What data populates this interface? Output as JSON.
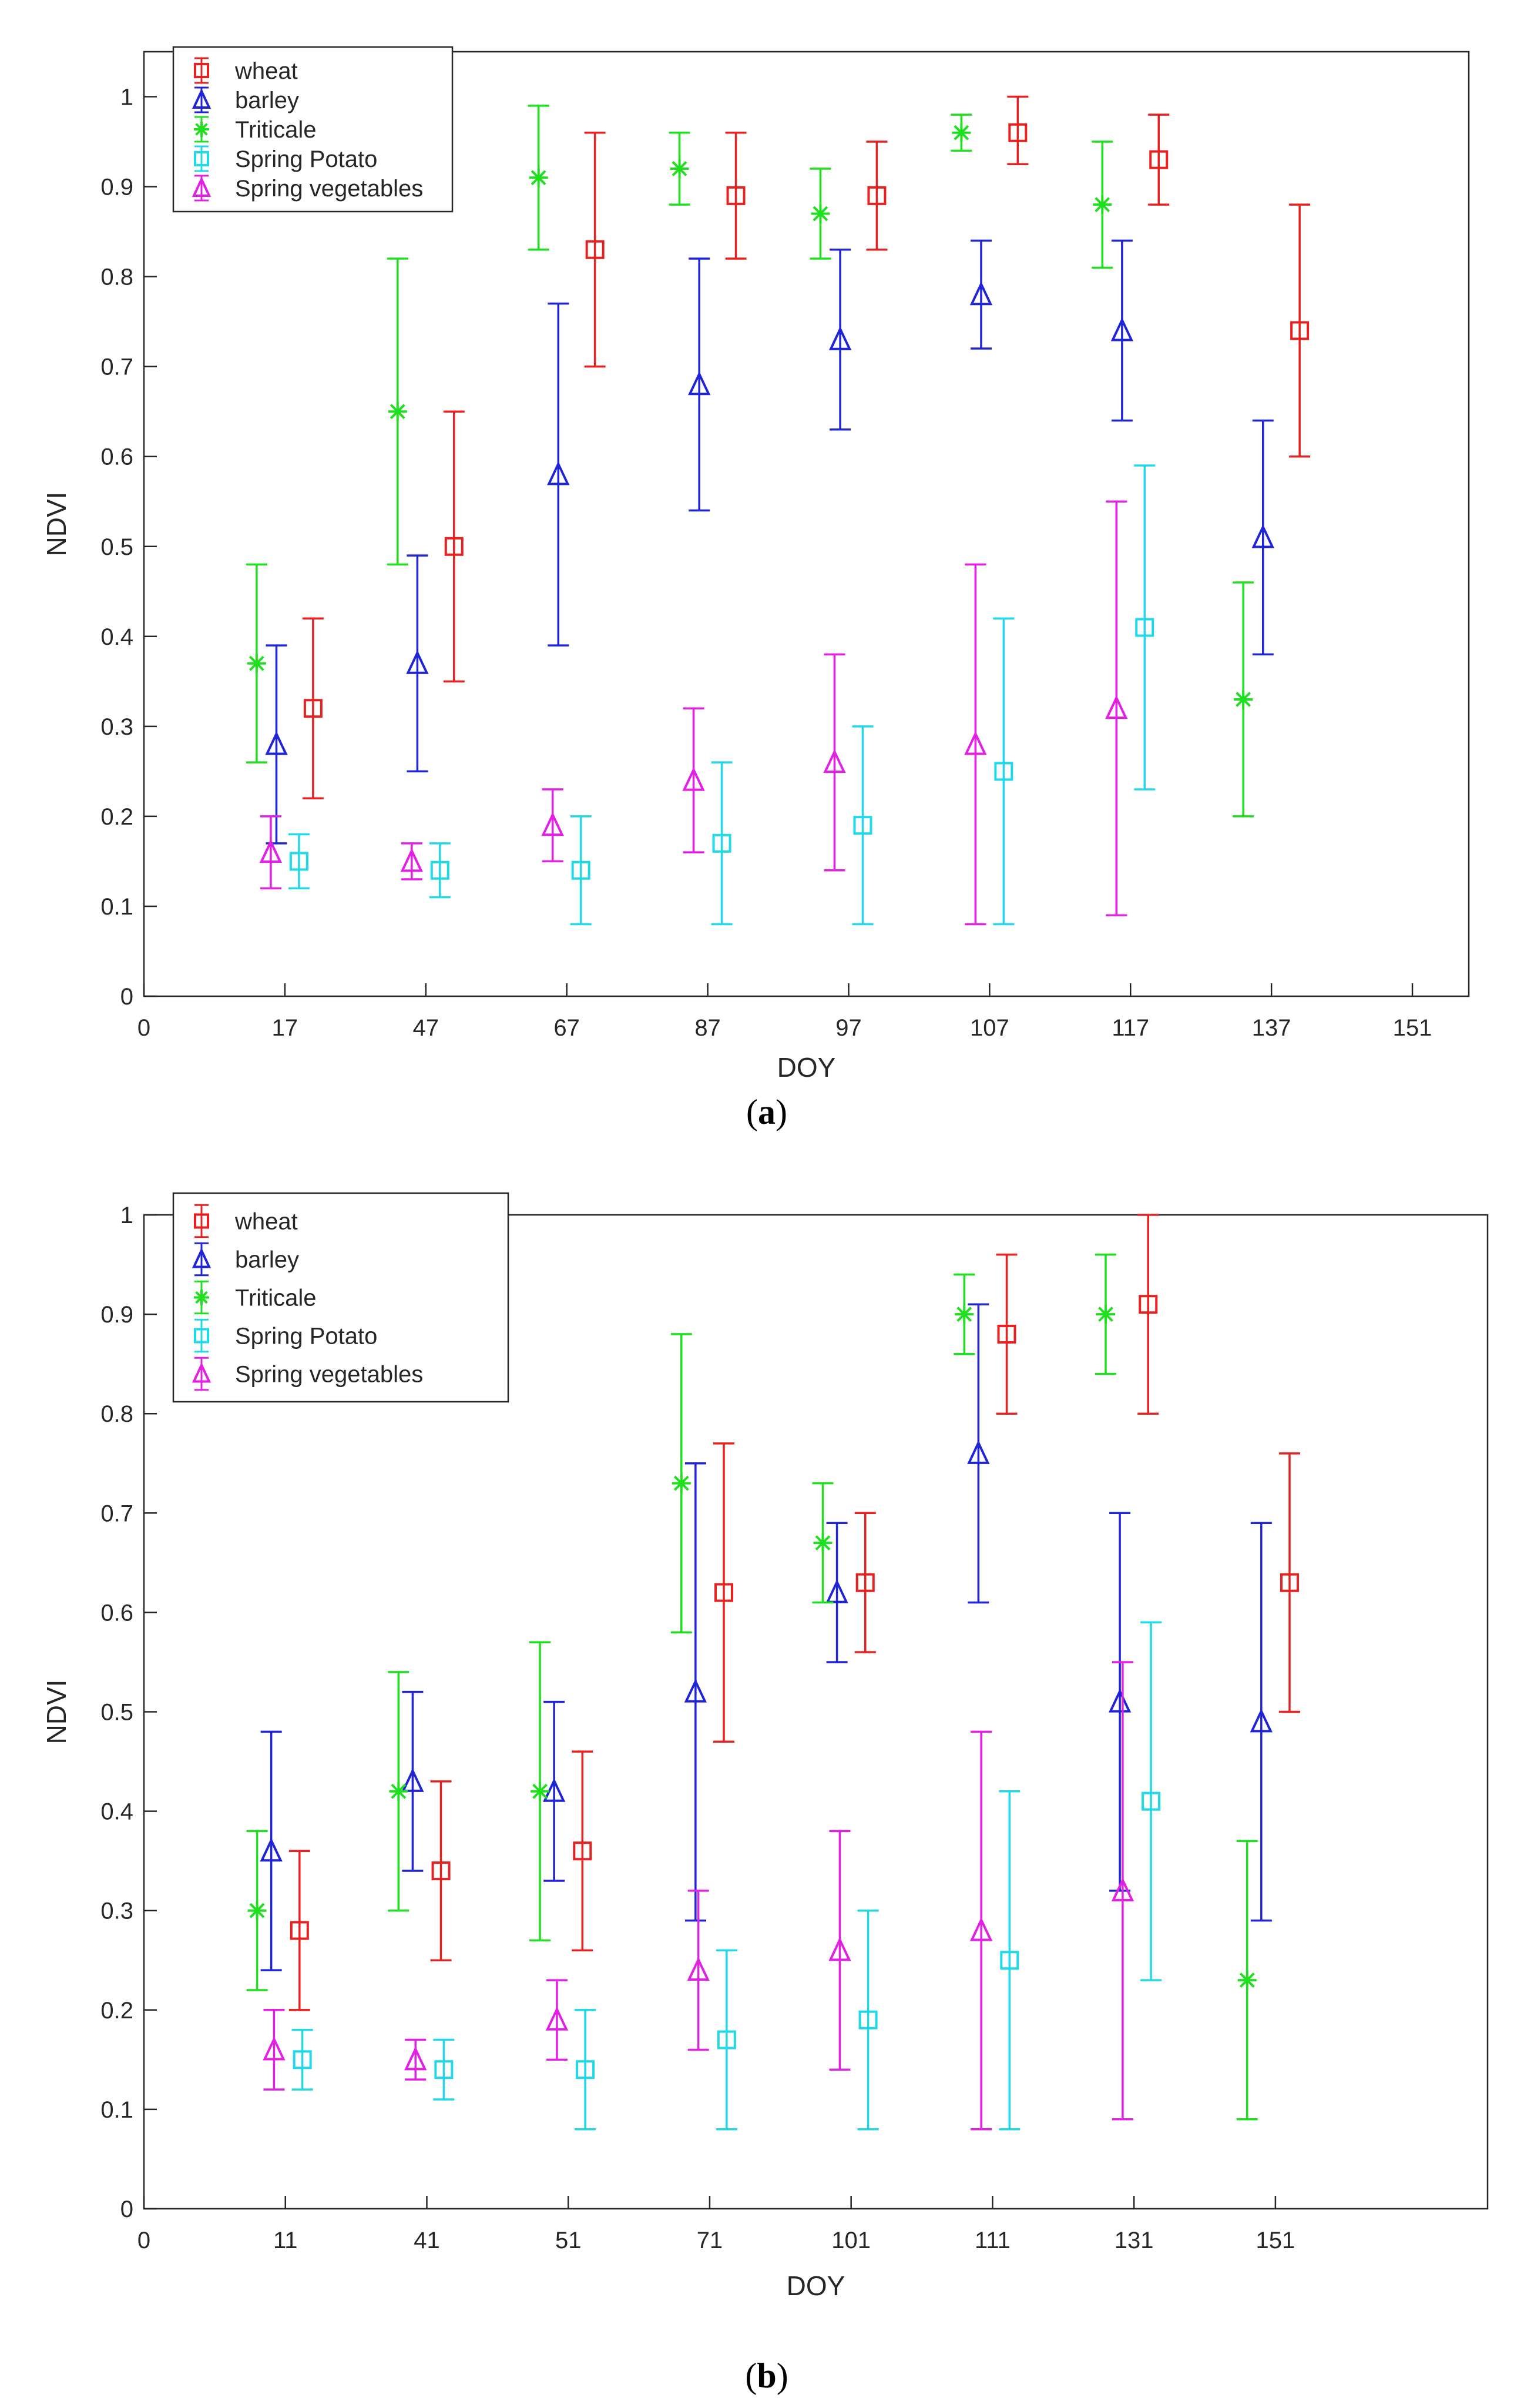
{
  "chart_data": [
    {
      "type": "errorbar",
      "panel_label": "(a)",
      "panel_letter": "a",
      "xlabel": "DOY",
      "ylabel": "NDVI",
      "xlim": [
        0,
        9.4
      ],
      "ylim": [
        0,
        1.05
      ],
      "x_tick_labels": [
        "0",
        "17",
        "47",
        "67",
        "87",
        "97",
        "107",
        "117",
        "137",
        "151"
      ],
      "y_ticks": [
        0,
        0.1,
        0.2,
        0.3,
        0.4,
        0.5,
        0.6,
        0.7,
        0.8,
        0.9,
        1
      ],
      "y_tick_labels": [
        "0",
        "0.1",
        "0.2",
        "0.3",
        "0.4",
        "0.5",
        "0.6",
        "0.7",
        "0.8",
        "0.9",
        "1"
      ],
      "legend_position": "top-left",
      "series": [
        {
          "name": "wheat",
          "color": "#e8201f",
          "marker": "square",
          "x": [
            1.2,
            2.2,
            3.2,
            4.2,
            5.2,
            6.2,
            7.2,
            8.2
          ],
          "y": [
            0.32,
            0.5,
            0.83,
            0.89,
            0.89,
            0.96,
            0.93,
            0.74
          ],
          "low": [
            0.22,
            0.35,
            0.7,
            0.82,
            0.83,
            0.925,
            0.88,
            0.6
          ],
          "high": [
            0.42,
            0.65,
            0.96,
            0.96,
            0.95,
            1.0,
            0.98,
            0.88
          ]
        },
        {
          "name": "barley",
          "color": "#1f24d6",
          "marker": "triangle",
          "x": [
            0.94,
            1.94,
            2.94,
            3.94,
            4.94,
            5.94,
            6.94,
            7.94
          ],
          "y": [
            0.28,
            0.37,
            0.58,
            0.68,
            0.73,
            0.78,
            0.74,
            0.51
          ],
          "low": [
            0.17,
            0.25,
            0.39,
            0.54,
            0.63,
            0.72,
            0.64,
            0.38
          ],
          "high": [
            0.39,
            0.49,
            0.77,
            0.82,
            0.83,
            0.84,
            0.84,
            0.64
          ]
        },
        {
          "name": "Triticale",
          "color": "#1fe01f",
          "marker": "star",
          "x": [
            0.8,
            1.8,
            2.8,
            3.8,
            4.8,
            5.8,
            6.8,
            7.8
          ],
          "y": [
            0.37,
            0.65,
            0.91,
            0.92,
            0.87,
            0.96,
            0.88,
            0.33
          ],
          "low": [
            0.26,
            0.48,
            0.83,
            0.88,
            0.82,
            0.94,
            0.81,
            0.2
          ],
          "high": [
            0.48,
            0.82,
            0.99,
            0.96,
            0.92,
            0.98,
            0.95,
            0.46
          ]
        },
        {
          "name": "Spring Potato",
          "color": "#1fd8e8",
          "marker": "square",
          "x": [
            1.1,
            2.1,
            3.1,
            4.1,
            5.1,
            6.1,
            7.1
          ],
          "y": [
            0.15,
            0.14,
            0.14,
            0.17,
            0.19,
            0.25,
            0.41
          ],
          "low": [
            0.12,
            0.11,
            0.08,
            0.08,
            0.08,
            0.08,
            0.23
          ],
          "high": [
            0.18,
            0.17,
            0.2,
            0.26,
            0.3,
            0.42,
            0.59
          ]
        },
        {
          "name": "Spring vegetables",
          "color": "#e21fe2",
          "marker": "triangle",
          "x": [
            0.9,
            1.9,
            2.9,
            3.9,
            4.9,
            5.9,
            6.9
          ],
          "y": [
            0.16,
            0.15,
            0.19,
            0.24,
            0.26,
            0.28,
            0.32
          ],
          "low": [
            0.12,
            0.13,
            0.15,
            0.16,
            0.14,
            0.08,
            0.09
          ],
          "high": [
            0.2,
            0.17,
            0.23,
            0.32,
            0.38,
            0.48,
            0.55
          ]
        }
      ]
    },
    {
      "type": "errorbar",
      "panel_label": "(b)",
      "panel_letter": "b",
      "xlabel": "DOY",
      "ylabel": "NDVI",
      "xlim": [
        0,
        9.5
      ],
      "ylim": [
        0,
        1.0
      ],
      "x_tick_labels": [
        "0",
        "11",
        "41",
        "51",
        "71",
        "101",
        "111",
        "131",
        "151"
      ],
      "y_ticks": [
        0,
        0.1,
        0.2,
        0.3,
        0.4,
        0.5,
        0.6,
        0.7,
        0.8,
        0.9,
        1
      ],
      "y_tick_labels": [
        "0",
        "0.1",
        "0.2",
        "0.3",
        "0.4",
        "0.5",
        "0.6",
        "0.7",
        "0.8",
        "0.9",
        "1"
      ],
      "legend_position": "top-left",
      "series": [
        {
          "name": "wheat",
          "color": "#e8201f",
          "marker": "square",
          "x": [
            1.1,
            2.1,
            3.1,
            4.1,
            5.1,
            6.1,
            7.1,
            8.1
          ],
          "y": [
            0.28,
            0.34,
            0.36,
            0.62,
            0.63,
            0.88,
            0.91,
            0.63
          ],
          "low": [
            0.2,
            0.25,
            0.26,
            0.47,
            0.56,
            0.8,
            0.8,
            0.5
          ],
          "high": [
            0.36,
            0.43,
            0.46,
            0.77,
            0.7,
            0.96,
            1.0,
            0.76
          ]
        },
        {
          "name": "barley",
          "color": "#1f24d6",
          "marker": "triangle",
          "x": [
            0.9,
            1.9,
            2.9,
            3.9,
            4.9,
            5.9,
            6.9,
            7.9
          ],
          "y": [
            0.36,
            0.43,
            0.42,
            0.52,
            0.62,
            0.76,
            0.51,
            0.49
          ],
          "low": [
            0.24,
            0.34,
            0.33,
            0.29,
            0.55,
            0.61,
            0.32,
            0.29
          ],
          "high": [
            0.48,
            0.52,
            0.51,
            0.75,
            0.69,
            0.91,
            0.7,
            0.69
          ]
        },
        {
          "name": "Triticale",
          "color": "#1fe01f",
          "marker": "star",
          "x": [
            0.8,
            1.8,
            2.8,
            3.8,
            4.8,
            5.8,
            6.8,
            7.8
          ],
          "y": [
            0.3,
            0.42,
            0.42,
            0.73,
            0.67,
            0.9,
            0.9,
            0.23
          ],
          "low": [
            0.22,
            0.3,
            0.27,
            0.58,
            0.61,
            0.86,
            0.84,
            0.09
          ],
          "high": [
            0.38,
            0.54,
            0.57,
            0.88,
            0.73,
            0.94,
            0.96,
            0.37
          ]
        },
        {
          "name": "Spring Potato",
          "color": "#1fd8e8",
          "marker": "square",
          "x": [
            1.12,
            2.12,
            3.12,
            4.12,
            5.12,
            6.12,
            7.12
          ],
          "y": [
            0.15,
            0.14,
            0.14,
            0.17,
            0.19,
            0.25,
            0.41
          ],
          "low": [
            0.12,
            0.11,
            0.08,
            0.08,
            0.08,
            0.08,
            0.23
          ],
          "high": [
            0.18,
            0.17,
            0.2,
            0.26,
            0.3,
            0.42,
            0.59
          ]
        },
        {
          "name": "Spring vegetables",
          "color": "#e21fe2",
          "marker": "triangle",
          "x": [
            0.92,
            1.92,
            2.92,
            3.92,
            4.92,
            5.92,
            6.92
          ],
          "y": [
            0.16,
            0.15,
            0.19,
            0.24,
            0.26,
            0.28,
            0.32
          ],
          "low": [
            0.12,
            0.13,
            0.15,
            0.16,
            0.14,
            0.08,
            0.09
          ],
          "high": [
            0.2,
            0.17,
            0.23,
            0.32,
            0.38,
            0.48,
            0.55
          ]
        }
      ]
    }
  ]
}
